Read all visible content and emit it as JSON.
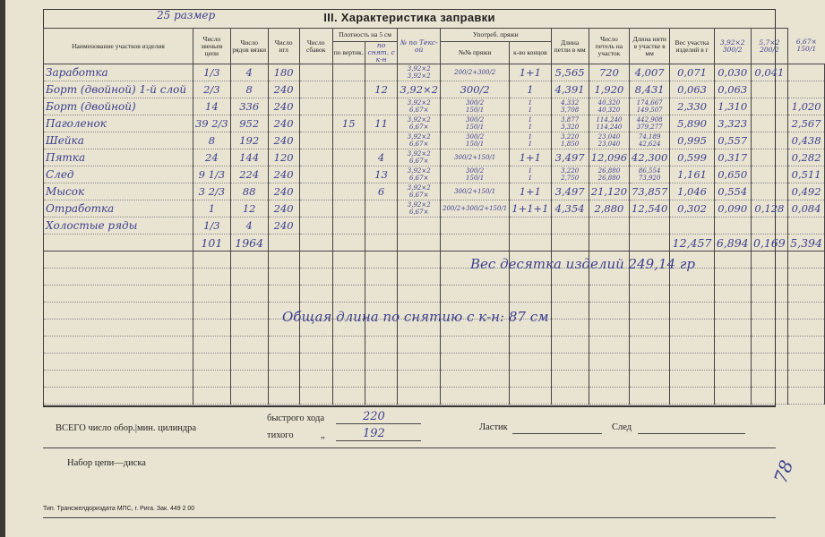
{
  "form": {
    "size_note": "25 размер",
    "title": "III. Характеристика заправки"
  },
  "table": {
    "header": {
      "name": "Наименование участков изделия",
      "links": "Число звеньев цепи",
      "rows": "Число рядов вязки",
      "needles": "Число игл",
      "decreases": "Число сбавок",
      "density": "Плотность на 5 см",
      "density_vert": "по вертик.",
      "density_hand": "по снят. с к-н",
      "tex_hand": "№ по Текс-ой",
      "yarn": "Употреб. пряжи",
      "yarn_no": "№№ пряжи",
      "yarn_ends": "к-во концов",
      "loop_len": "Длина петли в мм",
      "loops": "Число петель на участок",
      "thread_len": "Длина нити в участке в мм",
      "weight": "Вес участка изделий в г",
      "extra1": [
        "3,92×2",
        "300/2"
      ],
      "extra2": [
        "5,7×2",
        "200/2"
      ],
      "extra3": [
        "6,67×",
        "150/1"
      ]
    },
    "rows": [
      [
        "Заработка",
        "1/3",
        "4",
        "180",
        null,
        null,
        null,
        [
          "3,92×2",
          "3,92×2"
        ],
        [
          "200/2+300/2"
        ],
        "1+1",
        "5,565",
        "720",
        "4,007",
        "0,071",
        "0,030",
        "0,041",
        null
      ],
      [
        "Борт (двойной) 1-й слой",
        "2/3",
        "8",
        "240",
        null,
        null,
        "12",
        "3,92×2",
        "300/2",
        "1",
        "4,391",
        "1,920",
        "8,431",
        "0,063",
        "0,063",
        null,
        null
      ],
      [
        "Борт (двойной)",
        "14",
        "336",
        "240",
        null,
        null,
        null,
        [
          "3,92×2",
          "6,67×"
        ],
        [
          "300/2",
          "150/1"
        ],
        [
          "1",
          "1"
        ],
        [
          "4,332",
          "3,708"
        ],
        [
          "40,320",
          "40,320"
        ],
        [
          "174,667",
          "149,507"
        ],
        "2,330",
        "1,310",
        null,
        "1,020"
      ],
      [
        "Паголенок",
        "39 2/3",
        "952",
        "240",
        null,
        "15",
        "11",
        [
          "3,92×2",
          "6,67×"
        ],
        [
          "300/2",
          "150/1"
        ],
        [
          "1",
          "1"
        ],
        [
          "3,877",
          "3,320"
        ],
        [
          "114,240",
          "114,240"
        ],
        [
          "442,908",
          "379,277"
        ],
        "5,890",
        "3,323",
        null,
        "2,567"
      ],
      [
        "Шейка",
        "8",
        "192",
        "240",
        null,
        null,
        null,
        [
          "3,92×2",
          "6,67×"
        ],
        [
          "300/2",
          "150/1"
        ],
        [
          "1",
          "1"
        ],
        [
          "3,220",
          "1,850"
        ],
        [
          "23,040",
          "23,040"
        ],
        [
          "74,189",
          "42,624"
        ],
        "0,995",
        "0,557",
        null,
        "0,438"
      ],
      [
        "Пятка",
        "24",
        "144",
        "120",
        null,
        null,
        "4",
        [
          "3,92×2",
          "6,67×"
        ],
        [
          "300/2+150/1"
        ],
        "1+1",
        "3,497",
        "12,096",
        "42,300",
        "0,599",
        "0,317",
        null,
        "0,282"
      ],
      [
        "След",
        "9 1/3",
        "224",
        "240",
        null,
        null,
        "13",
        [
          "3,92×2",
          "6,67×"
        ],
        [
          "300/2",
          "150/1"
        ],
        [
          "1",
          "1"
        ],
        [
          "3,220",
          "2,750"
        ],
        [
          "26,880",
          "26,880"
        ],
        [
          "86,554",
          "73,920"
        ],
        "1,161",
        "0,650",
        null,
        "0,511"
      ],
      [
        "Мысок",
        "3 2/3",
        "88",
        "240",
        null,
        null,
        "6",
        [
          "3,92×2",
          "6,67×"
        ],
        [
          "300/2+150/1"
        ],
        "1+1",
        "3,497",
        "21,120",
        "73,857",
        "1,046",
        "0,554",
        null,
        "0,492"
      ],
      [
        "Отработка",
        "1",
        "12",
        "240",
        null,
        null,
        null,
        [
          "3,92×2",
          "6,67×"
        ],
        [
          "200/2+300/2+150/1"
        ],
        "1+1+1",
        "4,354",
        "2,880",
        "12,540",
        "0,302",
        "0,090",
        "0,128",
        "0,084"
      ],
      [
        "Холостые ряды",
        "1/3",
        "4",
        "240",
        null,
        null,
        null,
        null,
        null,
        null,
        null,
        null,
        null,
        null,
        null,
        null,
        null
      ]
    ],
    "total": [
      null,
      "101",
      "1964",
      null,
      null,
      null,
      null,
      null,
      null,
      null,
      null,
      null,
      null,
      "12,457",
      "6,894",
      "0,169",
      "5,394"
    ]
  },
  "notes": {
    "weight_ten": "Вес десятка изделий 249,14 гр",
    "total_length": "Общая длина по снятию с к-н: 87 см"
  },
  "bottom": {
    "total_label": "ВСЕГО число обор.",
    "per_min": "мин. цилиндра",
    "fast": "быстрого хода",
    "fast_value": "220",
    "slow": "тихого",
    "slow_ditto": "„",
    "slow_value": "192",
    "rib": "Ластик",
    "foot": "След",
    "chain": "Набор цепи—диска",
    "printer": "Тип. Трансжелдориздата МПС, г. Рига. Зак. 449 2 00",
    "page_no": "78"
  }
}
